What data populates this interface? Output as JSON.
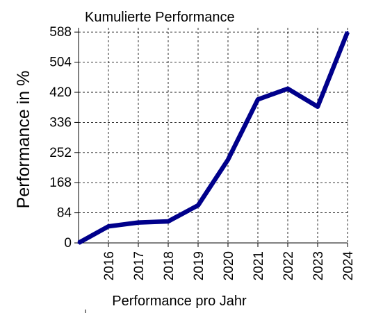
{
  "chart_data": {
    "type": "line",
    "title": "Kumulierte Performance",
    "ylabel": "Performance in %",
    "xlabel": "Performance pro Jahr",
    "x": [
      "",
      "2016",
      "2017",
      "2018",
      "2019",
      "2020",
      "2021",
      "2022",
      "2023",
      "2024"
    ],
    "xtick_labels": [
      "2016",
      "2017",
      "2018",
      "2019",
      "2020",
      "2021",
      "2022",
      "2023",
      "2024"
    ],
    "yticks": [
      0,
      84,
      168,
      252,
      336,
      420,
      504,
      588
    ],
    "ylim": [
      0,
      600
    ],
    "grid": true,
    "series": [
      {
        "values": [
          0,
          46,
          57,
          60,
          105,
          232,
          400,
          430,
          380,
          588
        ],
        "color": "#00008b"
      }
    ]
  }
}
